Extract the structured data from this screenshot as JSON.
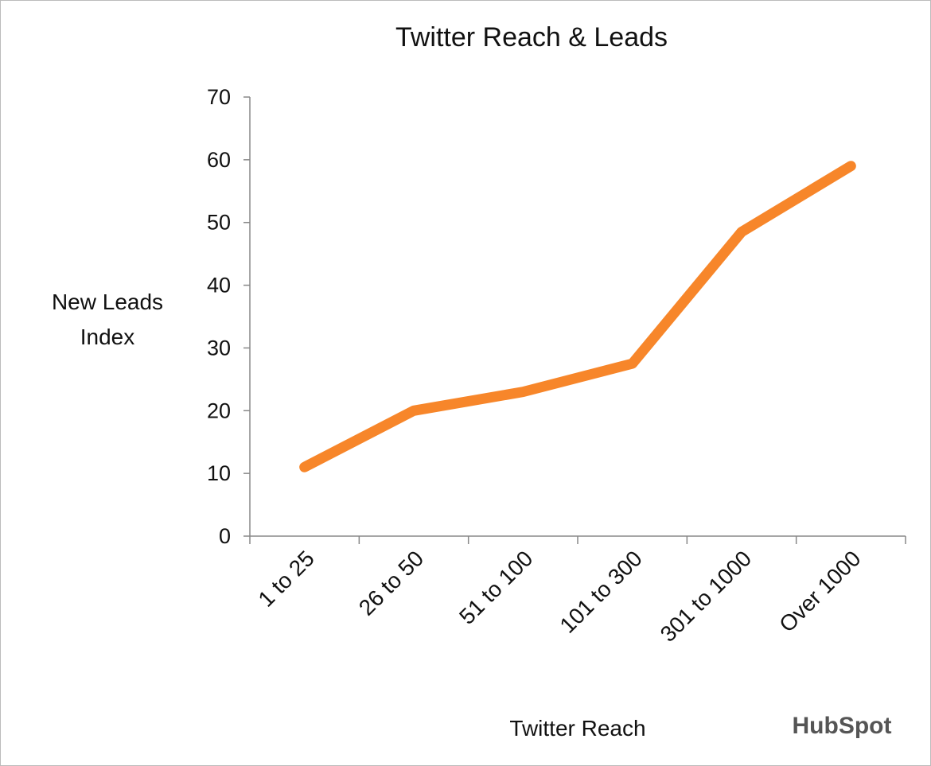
{
  "chart_data": {
    "type": "line",
    "title": "Twitter Reach & Leads",
    "x_label": "Twitter Reach",
    "y_label": "New Leads Index",
    "categories": [
      "1 to 25",
      "26 to 50",
      "51 to 100",
      "101 to 300",
      "301 to 1000",
      "Over 1000"
    ],
    "values": [
      11,
      20,
      23,
      27.5,
      48.5,
      59
    ],
    "color": "#f7862a",
    "ylim": [
      0,
      70
    ],
    "yticks": [
      0,
      10,
      20,
      30,
      40,
      50,
      60,
      70
    ],
    "grid": false,
    "logo": "HubSpot"
  }
}
